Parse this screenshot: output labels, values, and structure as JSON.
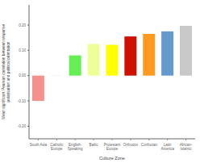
{
  "chart_data": {
    "type": "bar",
    "categories": [
      "South Asia",
      "Catholic\nEurope",
      "English-\nSpeaking",
      "Baltic",
      "Protestant\nEurope",
      "Orthodox",
      "Confucian",
      "Latin\nAmerica",
      "African-\nIslamic"
    ],
    "values": [
      -0.1,
      0.002,
      0.08,
      0.125,
      0.122,
      0.155,
      0.165,
      0.175,
      0.197
    ],
    "colors": [
      "#F4918C",
      "#F0EDE8",
      "#66EE55",
      "#EEFF99",
      "#FFFF00",
      "#CC1100",
      "#FF9922",
      "#6699CC",
      "#C8C8C8"
    ],
    "xlabel": "Culture Zone",
    "ylabel": "Mean significant Pearson correlation between response\npolarisation and political orientation",
    "ylim": [
      -0.25,
      0.28
    ],
    "yticks": [
      {
        "value": -0.2,
        "label": "-0.20"
      },
      {
        "value": -0.1,
        "label": "-0.10"
      },
      {
        "value": 0,
        "label": "0.00"
      },
      {
        "value": 0.1,
        "label": "0.10"
      },
      {
        "value": 0.2,
        "label": "0.20"
      }
    ],
    "grid": false
  }
}
